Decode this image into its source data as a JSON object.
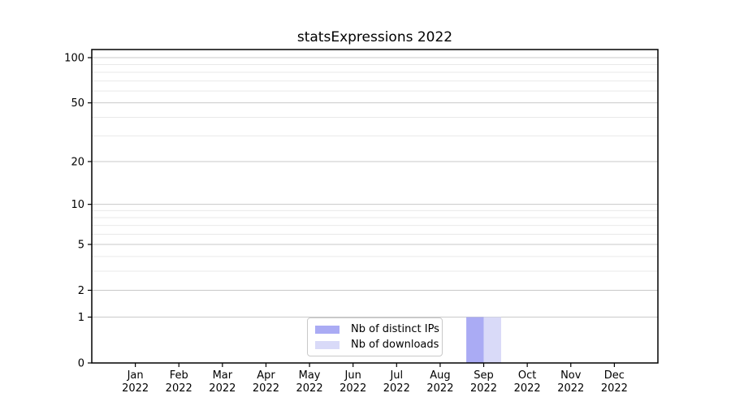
{
  "chart_data": {
    "type": "bar",
    "title": "statsExpressions 2022",
    "categories": [
      "Jan",
      "Feb",
      "Mar",
      "Apr",
      "May",
      "Jun",
      "Jul",
      "Aug",
      "Sep",
      "Oct",
      "Nov",
      "Dec"
    ],
    "category_sub_label": "2022",
    "series": [
      {
        "name": "Nb of distinct IPs",
        "color": "#aaabf4",
        "values": [
          0,
          0,
          0,
          0,
          0,
          0,
          0,
          0,
          1,
          0,
          0,
          0
        ]
      },
      {
        "name": "Nb of downloads",
        "color": "#d9daf8",
        "values": [
          0,
          0,
          0,
          0,
          0,
          0,
          0,
          0,
          1,
          0,
          0,
          0
        ]
      }
    ],
    "y_axis": {
      "scale": "log1p",
      "major_ticks": [
        0,
        1,
        2,
        5,
        10,
        20,
        50,
        100
      ],
      "minor_ticks": [
        3,
        4,
        6,
        7,
        8,
        9,
        30,
        40,
        60,
        70,
        80,
        90
      ],
      "top_value": 113
    },
    "legend": {
      "position": "bottom-center"
    },
    "colors": {
      "grid_major": "#c9c9c9",
      "grid_minor": "#e9e9e9",
      "spine": "#000000",
      "text": "#000000"
    }
  }
}
